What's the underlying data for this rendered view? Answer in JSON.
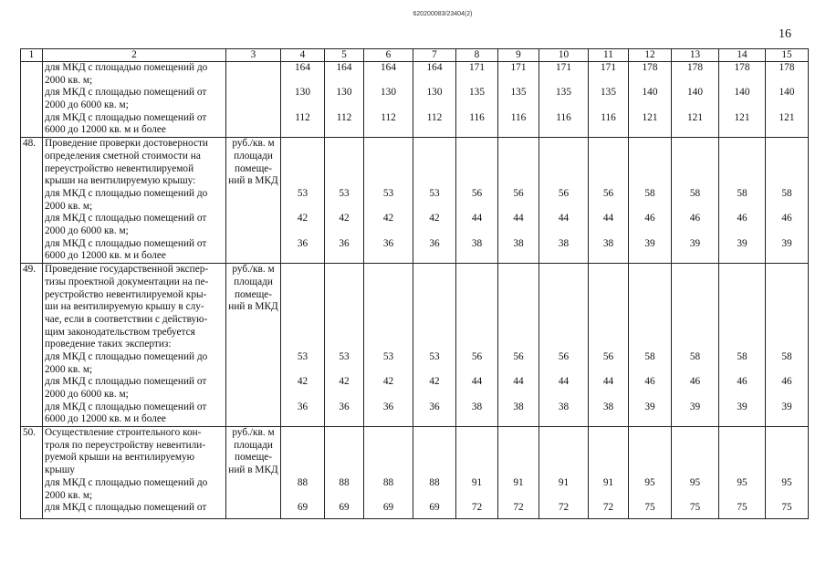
{
  "header": {
    "doc_id": "620200083/23404(2)",
    "page_number": "16"
  },
  "table": {
    "column_numbers": [
      "1",
      "2",
      "3",
      "4",
      "5",
      "6",
      "7",
      "8",
      "9",
      "10",
      "11",
      "12",
      "13",
      "14",
      "15"
    ],
    "rows": [
      {
        "num": "",
        "intro": [],
        "unit": [],
        "items": [
          {
            "label": [
              "для МКД с площадью помещений до",
              "2000 кв. м;"
            ],
            "values": [
              "164",
              "164",
              "164",
              "164",
              "171",
              "171",
              "171",
              "171",
              "178",
              "178",
              "178",
              "178"
            ]
          },
          {
            "label": [
              "для МКД с площадью помещений от",
              "2000 до 6000 кв. м;"
            ],
            "values": [
              "130",
              "130",
              "130",
              "130",
              "135",
              "135",
              "135",
              "135",
              "140",
              "140",
              "140",
              "140"
            ]
          },
          {
            "label": [
              "для МКД с площадью помещений от",
              "6000 до 12000 кв. м и более"
            ],
            "values": [
              "112",
              "112",
              "112",
              "112",
              "116",
              "116",
              "116",
              "116",
              "121",
              "121",
              "121",
              "121"
            ]
          }
        ]
      },
      {
        "num": "48.",
        "intro": [
          "Проведение проверки достоверности",
          "определения сметной стоимости на",
          "переустройство невентилируемой",
          "крыши на вентилируемую крышу:"
        ],
        "unit": [
          "руб./кв. м",
          "площади",
          "помеще-",
          "ний в МКД"
        ],
        "items": [
          {
            "label": [
              "для МКД с площадью помещений до",
              "2000 кв. м;"
            ],
            "values": [
              "53",
              "53",
              "53",
              "53",
              "56",
              "56",
              "56",
              "56",
              "58",
              "58",
              "58",
              "58"
            ]
          },
          {
            "label": [
              "для МКД с площадью помещений от",
              "2000 до 6000 кв. м;"
            ],
            "values": [
              "42",
              "42",
              "42",
              "42",
              "44",
              "44",
              "44",
              "44",
              "46",
              "46",
              "46",
              "46"
            ]
          },
          {
            "label": [
              "для МКД с площадью помещений от",
              "6000 до 12000 кв. м и более"
            ],
            "values": [
              "36",
              "36",
              "36",
              "36",
              "38",
              "38",
              "38",
              "38",
              "39",
              "39",
              "39",
              "39"
            ]
          }
        ]
      },
      {
        "num": "49.",
        "intro": [
          "Проведение государственной экспер-",
          "тизы проектной документации на пе-",
          "реустройство невентилируемой кры-",
          "ши на вентилируемую крышу в слу-",
          "чае, если в соответствии с действую-",
          "щим законодательством требуется",
          "проведение таких экспертиз:"
        ],
        "unit": [
          "руб./кв. м",
          "площади",
          "помеще-",
          "ний в МКД"
        ],
        "items": [
          {
            "label": [
              "для МКД с площадью помещений до",
              "2000 кв. м;"
            ],
            "values": [
              "53",
              "53",
              "53",
              "53",
              "56",
              "56",
              "56",
              "56",
              "58",
              "58",
              "58",
              "58"
            ]
          },
          {
            "label": [
              "для МКД с площадью помещений от",
              "2000 до 6000 кв. м;"
            ],
            "values": [
              "42",
              "42",
              "42",
              "42",
              "44",
              "44",
              "44",
              "44",
              "46",
              "46",
              "46",
              "46"
            ]
          },
          {
            "label": [
              "для МКД с площадью помещений от",
              "6000 до 12000 кв. м и более"
            ],
            "values": [
              "36",
              "36",
              "36",
              "36",
              "38",
              "38",
              "38",
              "38",
              "39",
              "39",
              "39",
              "39"
            ]
          }
        ]
      },
      {
        "num": "50.",
        "intro": [
          "Осуществление строительного кон-",
          "троля по переустройству невентили-",
          "руемой крыши на вентилируемую",
          "крышу"
        ],
        "unit": [
          "руб./кв. м",
          "площади",
          "помеще-",
          "ний в МКД"
        ],
        "items": [
          {
            "label": [
              "для МКД с площадью помещений до",
              "2000 кв. м;"
            ],
            "values": [
              "88",
              "88",
              "88",
              "88",
              "91",
              "91",
              "91",
              "91",
              "95",
              "95",
              "95",
              "95"
            ]
          },
          {
            "label": [
              "для МКД с площадью помещений от"
            ],
            "values": [
              "69",
              "69",
              "69",
              "69",
              "72",
              "72",
              "72",
              "72",
              "75",
              "75",
              "75",
              "75"
            ]
          }
        ]
      }
    ]
  }
}
